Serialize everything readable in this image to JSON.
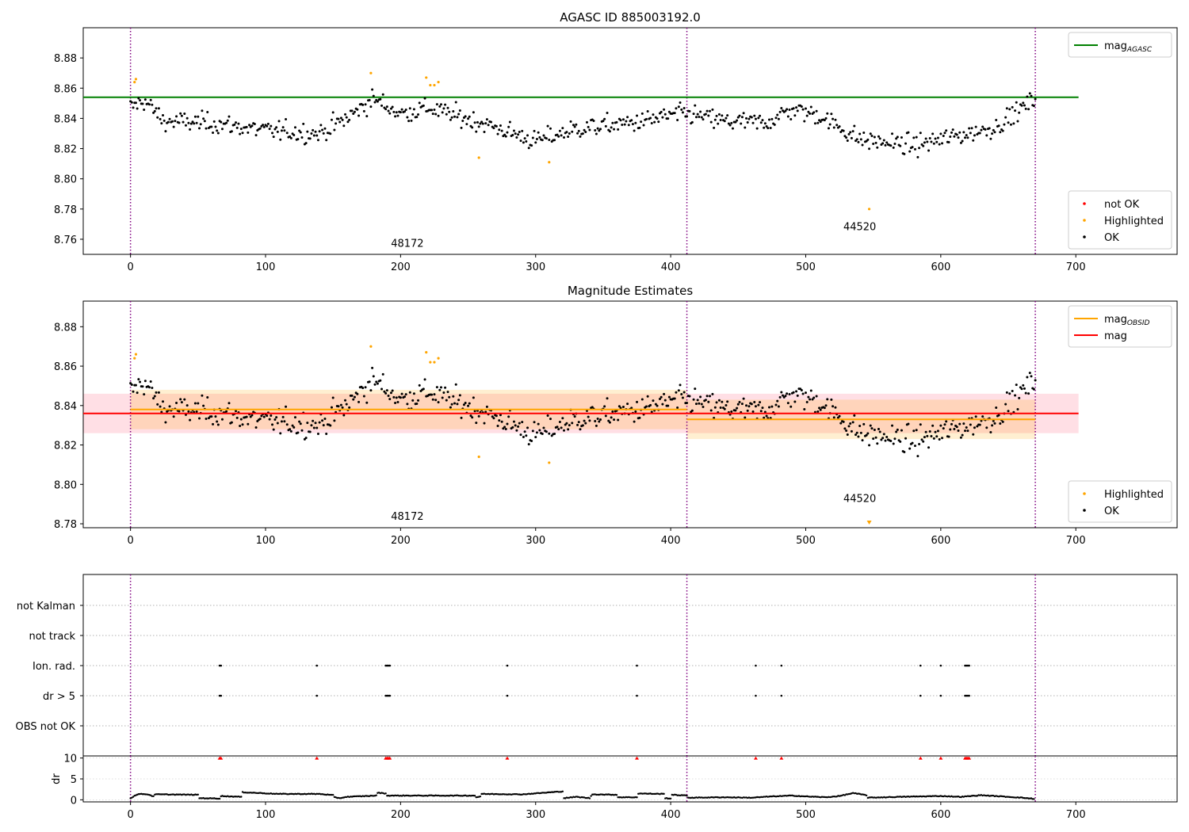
{
  "chart_data": [
    {
      "id": "p1",
      "type": "scatter",
      "title": "AGASC ID 885003192.0",
      "xlim": [
        -35,
        775
      ],
      "ylim": [
        8.75,
        8.9
      ],
      "xticks": [
        0,
        100,
        200,
        300,
        400,
        500,
        600,
        700
      ],
      "xtick_labels": [
        "0",
        "100",
        "200",
        "300",
        "400",
        "500",
        "600",
        "700"
      ],
      "yticks": [
        8.76,
        8.78,
        8.8,
        8.82,
        8.84,
        8.86,
        8.88
      ],
      "ytick_labels": [
        "8.76",
        "8.78",
        "8.80",
        "8.82",
        "8.84",
        "8.86",
        "8.88"
      ],
      "vlines": [
        0,
        412,
        670
      ],
      "hlines": [
        {
          "name": "mag_AGASC",
          "y": 8.854,
          "x_range": [
            -35,
            702
          ],
          "color": "#008000"
        }
      ],
      "obsid_labels": [
        {
          "text": "48172",
          "x": 205,
          "y": 8.755
        },
        {
          "text": "44520",
          "x": 540,
          "y": 8.766
        }
      ],
      "highlighted_points": [
        [
          3,
          8.864
        ],
        [
          4,
          8.866
        ],
        [
          178,
          8.87
        ],
        [
          219,
          8.867
        ],
        [
          222,
          8.862
        ],
        [
          225,
          8.862
        ],
        [
          228,
          8.864
        ],
        [
          258,
          8.814
        ],
        [
          310,
          8.811
        ],
        [
          547,
          8.78
        ]
      ],
      "legend_top": {
        "position": "top-right",
        "entries": [
          {
            "label": "mag",
            "sub": "AGASC",
            "color": "#008000"
          }
        ]
      },
      "legend_bottom": {
        "position": "bottom-right",
        "entries": [
          {
            "label": "not OK",
            "color": "#ff0000"
          },
          {
            "label": "Highlighted",
            "color": "#ffa500"
          },
          {
            "label": "OK",
            "color": "#000000"
          }
        ]
      }
    },
    {
      "id": "p2",
      "type": "scatter",
      "title": "Magnitude Estimates",
      "xlim": [
        -35,
        775
      ],
      "ylim": [
        8.778,
        8.893
      ],
      "xticks": [
        0,
        100,
        200,
        300,
        400,
        500,
        600,
        700
      ],
      "xtick_labels": [
        "0",
        "100",
        "200",
        "300",
        "400",
        "500",
        "600",
        "700"
      ],
      "yticks": [
        8.78,
        8.8,
        8.82,
        8.84,
        8.86,
        8.88
      ],
      "ytick_labels": [
        "8.78",
        "8.80",
        "8.82",
        "8.84",
        "8.86",
        "8.88"
      ],
      "vlines": [
        0,
        412,
        670
      ],
      "mag_line": {
        "y": 8.836,
        "band": [
          8.826,
          8.846
        ],
        "x_range": [
          -35,
          702
        ]
      },
      "obsid_segments": [
        {
          "x": [
            0,
            412
          ],
          "y": 8.838,
          "band": [
            8.828,
            8.848
          ]
        },
        {
          "x": [
            412,
            670
          ],
          "y": 8.833,
          "band": [
            8.823,
            8.843
          ]
        }
      ],
      "obsid_labels": [
        {
          "text": "48172",
          "x": 205,
          "y": 8.782
        },
        {
          "text": "44520",
          "x": 540,
          "y": 8.791
        }
      ],
      "highlighted_points": [
        [
          3,
          8.864
        ],
        [
          4,
          8.866
        ],
        [
          178,
          8.87
        ],
        [
          219,
          8.867
        ],
        [
          222,
          8.862
        ],
        [
          225,
          8.862
        ],
        [
          228,
          8.864
        ],
        [
          258,
          8.814
        ],
        [
          310,
          8.811
        ]
      ],
      "highlighted_markers": [
        [
          547,
          8.78
        ]
      ],
      "legend_top": {
        "position": "top-right",
        "entries": [
          {
            "label": "mag",
            "sub": "OBSID",
            "color": "#ffa500"
          },
          {
            "label": "mag",
            "sub": "",
            "color": "#ff0000"
          }
        ]
      },
      "legend_bottom": {
        "position": "bottom-right",
        "entries": [
          {
            "label": "Highlighted",
            "color": "#ffa500"
          },
          {
            "label": "OK",
            "color": "#000000"
          }
        ]
      }
    },
    {
      "id": "p3",
      "type": "scatter",
      "xlim": [
        -35,
        775
      ],
      "categories": [
        "not Kalman",
        "not track",
        "Ion. rad.",
        "dr > 5",
        "OBS not OK"
      ],
      "vlines": [
        0,
        412,
        670
      ],
      "flags": {
        "Ion. rad.": [
          66,
          67,
          138,
          189,
          190,
          191,
          192,
          279,
          375,
          463,
          482,
          585,
          600,
          618,
          619,
          620,
          621
        ],
        "dr > 5": [
          66,
          67,
          138,
          189,
          190,
          191,
          192,
          279,
          375,
          463,
          482,
          585,
          600,
          618,
          619,
          620,
          621
        ]
      }
    },
    {
      "id": "p4",
      "type": "line",
      "ylabel": "dr",
      "xlim": [
        -35,
        775
      ],
      "ylim": [
        -0.5,
        10.5
      ],
      "xticks": [
        0,
        100,
        200,
        300,
        400,
        500,
        600,
        700
      ],
      "xtick_labels": [
        "0",
        "100",
        "200",
        "300",
        "400",
        "500",
        "600",
        "700"
      ],
      "yticks": [
        0,
        5,
        10
      ],
      "ytick_labels": [
        "0",
        "5",
        "10"
      ],
      "vlines": [
        0,
        412,
        670
      ],
      "clipped_markers_x": [
        66,
        67,
        138,
        189,
        190,
        191,
        192,
        279,
        375,
        463,
        482,
        585,
        600,
        618,
        619,
        620,
        621
      ],
      "dr_segments": [
        {
          "x": [
            0,
            5
          ],
          "y": 0.4
        },
        {
          "x": 5,
          "y": 1.3
        },
        {
          "x": 10,
          "y": 1.4
        },
        {
          "x": 14,
          "y": 1.2
        },
        {
          "x": 17,
          "y": 0.8
        },
        {
          "x": 18,
          "y": 1.3
        },
        {
          "x": 50,
          "y": 1.2
        },
        {
          "x": 51,
          "y": 0.4
        },
        {
          "x": 66,
          "y": 0.3
        },
        {
          "x": 67,
          "y": 0.9
        },
        {
          "x": 82,
          "y": 0.7
        },
        {
          "x": 83,
          "y": 1.8
        },
        {
          "x": 110,
          "y": 1.4
        },
        {
          "x": 140,
          "y": 1.4
        },
        {
          "x": 150,
          "y": 1.1
        },
        {
          "x": 151,
          "y": 0.6
        },
        {
          "x": 155,
          "y": 0.4
        },
        {
          "x": 160,
          "y": 0.7
        },
        {
          "x": 182,
          "y": 1.0
        },
        {
          "x": 183,
          "y": 1.7
        },
        {
          "x": 189,
          "y": 1.5
        },
        {
          "x": 190,
          "y": 1.0
        },
        {
          "x": 255,
          "y": 1.0
        },
        {
          "x": 256,
          "y": 0.6
        },
        {
          "x": 259,
          "y": 0.8
        },
        {
          "x": 260,
          "y": 1.4
        },
        {
          "x": 290,
          "y": 1.3
        },
        {
          "x": 320,
          "y": 2.0
        },
        {
          "x": 321,
          "y": 0.4
        },
        {
          "x": 330,
          "y": 0.7
        },
        {
          "x": 340,
          "y": 0.4
        },
        {
          "x": 342,
          "y": 1.3
        },
        {
          "x": 360,
          "y": 1.2
        },
        {
          "x": 361,
          "y": 0.6
        },
        {
          "x": 375,
          "y": 0.6
        },
        {
          "x": 376,
          "y": 1.5
        },
        {
          "x": 395,
          "y": 1.4
        },
        {
          "x": 396,
          "y": 0.4
        },
        {
          "x": 400,
          "y": 0.3
        },
        {
          "x": 401,
          "y": 1.2
        },
        {
          "x": 412,
          "y": 1.0
        },
        {
          "x": 413,
          "y": 0.5
        },
        {
          "x": 440,
          "y": 0.6
        },
        {
          "x": 460,
          "y": 0.5
        },
        {
          "x": 475,
          "y": 0.8
        },
        {
          "x": 490,
          "y": 1.0
        },
        {
          "x": 500,
          "y": 0.8
        },
        {
          "x": 515,
          "y": 0.6
        },
        {
          "x": 525,
          "y": 0.9
        },
        {
          "x": 535,
          "y": 1.6
        },
        {
          "x": 545,
          "y": 1.1
        },
        {
          "x": 546,
          "y": 0.5
        },
        {
          "x": 570,
          "y": 0.7
        },
        {
          "x": 600,
          "y": 0.9
        },
        {
          "x": 615,
          "y": 0.7
        },
        {
          "x": 630,
          "y": 1.1
        },
        {
          "x": 645,
          "y": 0.8
        },
        {
          "x": 660,
          "y": 0.5
        },
        {
          "x": 670,
          "y": 0.2
        }
      ]
    }
  ]
}
